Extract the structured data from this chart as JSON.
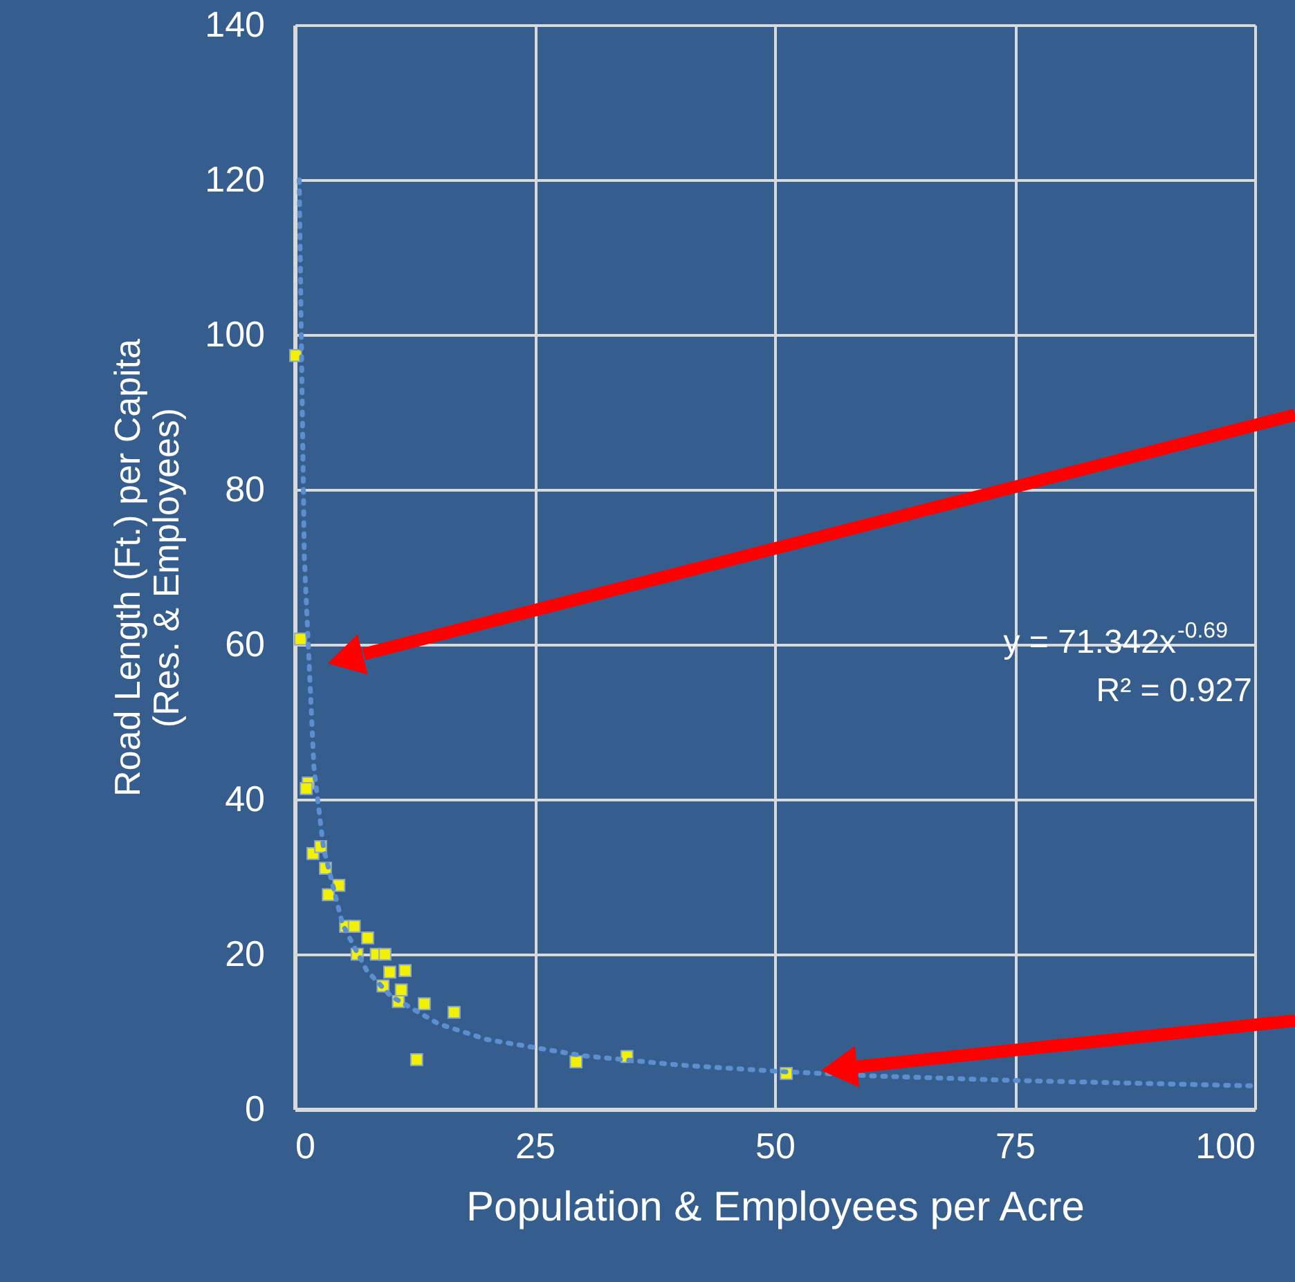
{
  "chart_data": {
    "type": "scatter",
    "xlabel": "Population & Employees per Acre",
    "ylabel": "Road Length (Ft.) per Capita\n(Res. & Employees)",
    "xlim": [
      0,
      100
    ],
    "xticks": [
      0,
      25,
      50,
      75,
      100
    ],
    "ylim": [
      0,
      140
    ],
    "yticks": [
      0,
      20,
      40,
      60,
      80,
      100,
      120,
      140
    ],
    "grid": true,
    "marker": "square",
    "series": [
      {
        "color": "#f2f200",
        "x": [
          0.1,
          0.6,
          1.4,
          1.2,
          1.9,
          2.7,
          3.2,
          3.5,
          4.6,
          5.3,
          6.2,
          7.6,
          6.5,
          8.5,
          9.4,
          9.9,
          11.5,
          9.2,
          11.1,
          10.8,
          13.5,
          16.6,
          12.7,
          29.3,
          34.6,
          51.2
        ],
        "values": [
          97.3,
          60.7,
          42.1,
          41.4,
          33.0,
          33.9,
          31.1,
          27.7,
          28.9,
          23.6,
          23.6,
          22.1,
          20.0,
          20.0,
          20.0,
          17.7,
          17.9,
          15.9,
          15.4,
          13.9,
          13.6,
          12.5,
          6.4,
          6.1,
          6.8,
          4.6
        ]
      },
      {
        "type": "line",
        "color": "#5b8fd0",
        "line_style": "dotted",
        "marker": "none",
        "x": [
          0.47,
          1,
          2,
          3,
          5,
          7.5,
          10,
          15,
          20,
          30,
          40,
          50,
          60,
          75,
          100
        ],
        "values": [
          120,
          71.3,
          44.1,
          33.7,
          23.8,
          17.9,
          14.6,
          11.0,
          9.0,
          6.9,
          5.7,
          4.9,
          4.3,
          3.7,
          3.0
        ]
      }
    ],
    "annotations": [
      "y = 71.342x$^{-0.69}$",
      "R² = 0.927"
    ]
  }
}
